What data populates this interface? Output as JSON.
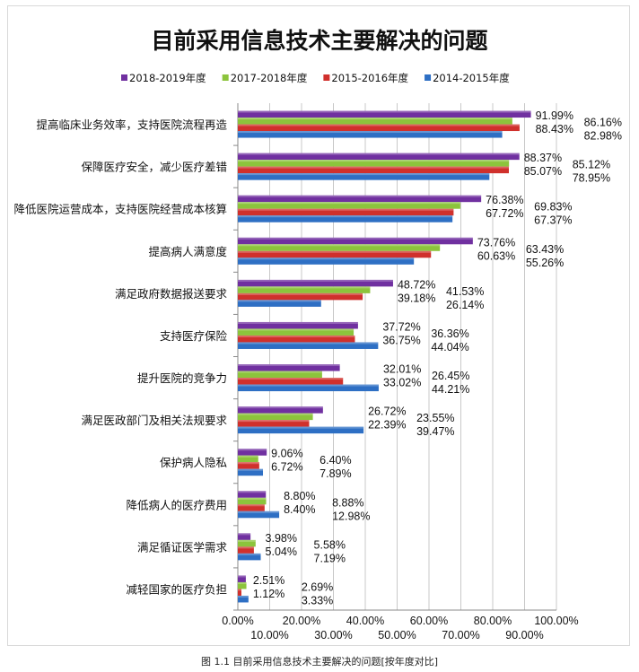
{
  "chart_data": {
    "type": "bar",
    "orientation": "horizontal",
    "title": "目前采用信息技术主要解决的问题",
    "caption": "图 1.1  目前采用信息技术主要解决的问题[按年度对比]",
    "categories": [
      "提高临床业务效率，支持医院流程再造",
      "保障医疗安全，减少医疗差错",
      "降低医院运营成本，支持医院经营成本核算",
      "提高病人满意度",
      "满足政府数据报送要求",
      "支持医疗保险",
      "提升医院的竞争力",
      "满足医政部门及相关法规要求",
      "保护病人隐私",
      "降低病人的医疗费用",
      "满足循证医学需求",
      "减轻国家的医疗负担"
    ],
    "series": [
      {
        "name": "2018-2019年度",
        "color": "#7030a0",
        "values": [
          91.99,
          88.37,
          76.38,
          73.76,
          48.72,
          37.72,
          32.01,
          26.72,
          9.06,
          8.8,
          3.98,
          2.51
        ]
      },
      {
        "name": "2017-2018年度",
        "color": "#8cc43c",
        "values": [
          86.16,
          85.12,
          69.83,
          63.43,
          41.53,
          36.36,
          26.45,
          23.55,
          6.4,
          8.88,
          5.58,
          2.69
        ]
      },
      {
        "name": "2015-2016年度",
        "color": "#d0302c",
        "values": [
          88.43,
          85.07,
          67.72,
          60.63,
          39.18,
          36.75,
          33.02,
          22.39,
          6.72,
          8.4,
          5.04,
          1.12
        ]
      },
      {
        "name": "2014-2015年度",
        "color": "#2e6fc4",
        "values": [
          82.98,
          78.95,
          67.37,
          55.26,
          26.14,
          44.04,
          44.21,
          39.47,
          7.89,
          12.98,
          7.19,
          3.33
        ]
      }
    ],
    "xlim": [
      0,
      100
    ],
    "xticks": [
      "0.00%",
      "10.00%",
      "20.00%",
      "30.00%",
      "40.00%",
      "50.00%",
      "60.00%",
      "70.00%",
      "80.00%",
      "90.00%",
      "100.00%"
    ],
    "legend": "top",
    "grid": true
  }
}
